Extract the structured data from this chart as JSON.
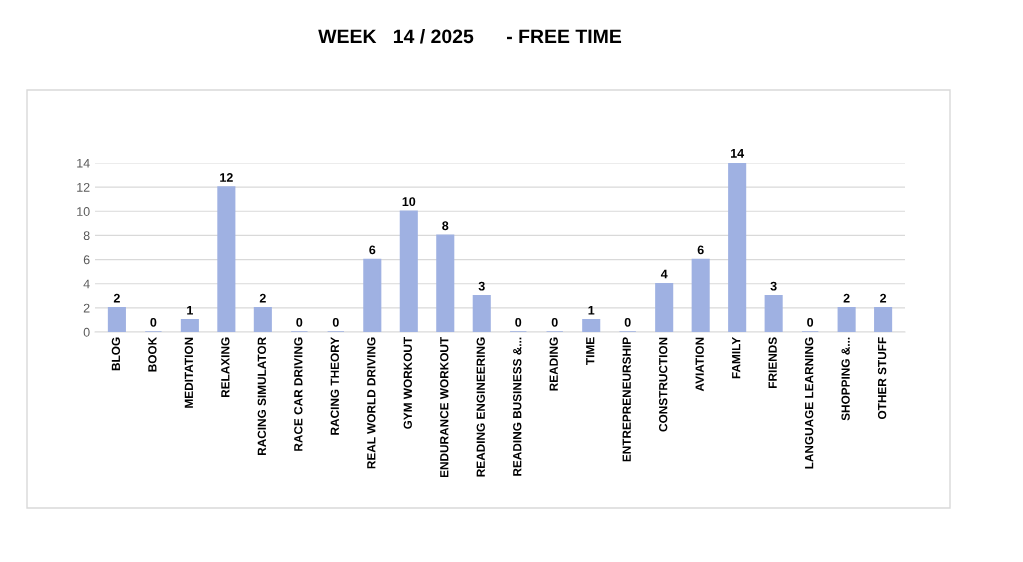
{
  "chart_data": {
    "type": "bar",
    "title": "WEEK   14 / 2025      - FREE TIME",
    "categories": [
      "BLOG",
      "BOOK",
      "MEDITATION",
      "RELAXING",
      "RACING SIMULATOR",
      "RACE CAR DRIVING",
      "RACING THEORY",
      "REAL WORLD DRIVING",
      "GYM WORKOUT",
      "ENDURANCE WORKOUT",
      "READING ENGINEERING",
      "READING BUSINESS &...",
      "READING",
      "TIME",
      "ENTREPRENEURSHIP",
      "CONSTRUCTION",
      "AVIATION",
      "FAMILY",
      "FRIENDS",
      "LANGUAGE LEARNING",
      "SHOPPING &...",
      "OTHER STUFF"
    ],
    "values": [
      2,
      0,
      1,
      12,
      2,
      0,
      0,
      6,
      10,
      8,
      3,
      0,
      0,
      1,
      0,
      4,
      6,
      14,
      3,
      0,
      2,
      2
    ],
    "color": "#9fb1e2",
    "ylim": [
      0,
      14
    ],
    "yticks": [
      0,
      2,
      4,
      6,
      8,
      10,
      12,
      14
    ],
    "grid": "y",
    "data_labels": true
  }
}
